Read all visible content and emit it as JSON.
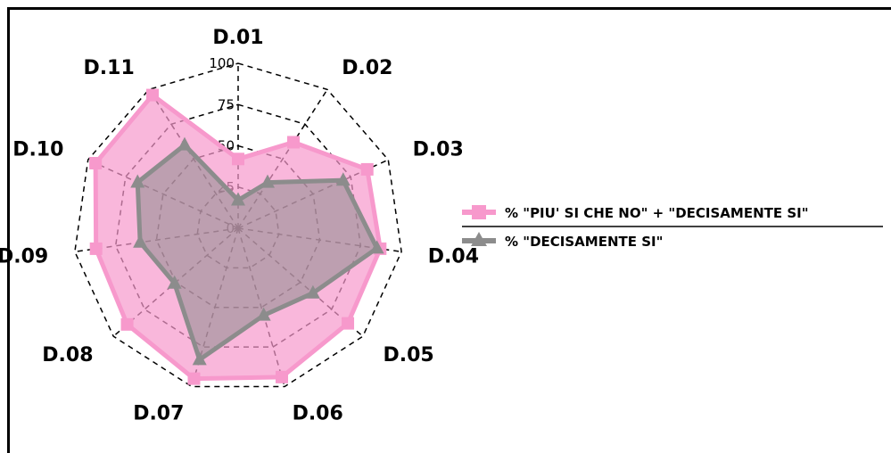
{
  "chart_data": {
    "type": "radar",
    "categories": [
      "D.01",
      "D.02",
      "D.03",
      "D.04",
      "D.05",
      "D.06",
      "D.07",
      "D.08",
      "D.09",
      "D.10",
      "D.11"
    ],
    "rlim": [
      0,
      100
    ],
    "r_ticks": [
      "0",
      "25",
      "50",
      "75",
      "100"
    ],
    "grid": true,
    "legend_position": "right",
    "series": [
      {
        "name": "% \"PIU' SI CHE NO\" + \"DECISAMENTE SI\"",
        "values": [
          42,
          62,
          86,
          87,
          88,
          94,
          95,
          89,
          87,
          95,
          96
        ],
        "color": "#f799cc",
        "fill": "#f799cc",
        "marker": "square"
      },
      {
        "name": "% \"DECISAMENTE SI\"",
        "values": [
          17,
          33,
          70,
          85,
          60,
          55,
          83,
          51,
          60,
          67,
          60
        ],
        "color": "#8c8c8c",
        "fill": "#8c8c8c",
        "marker": "triangle"
      }
    ]
  }
}
